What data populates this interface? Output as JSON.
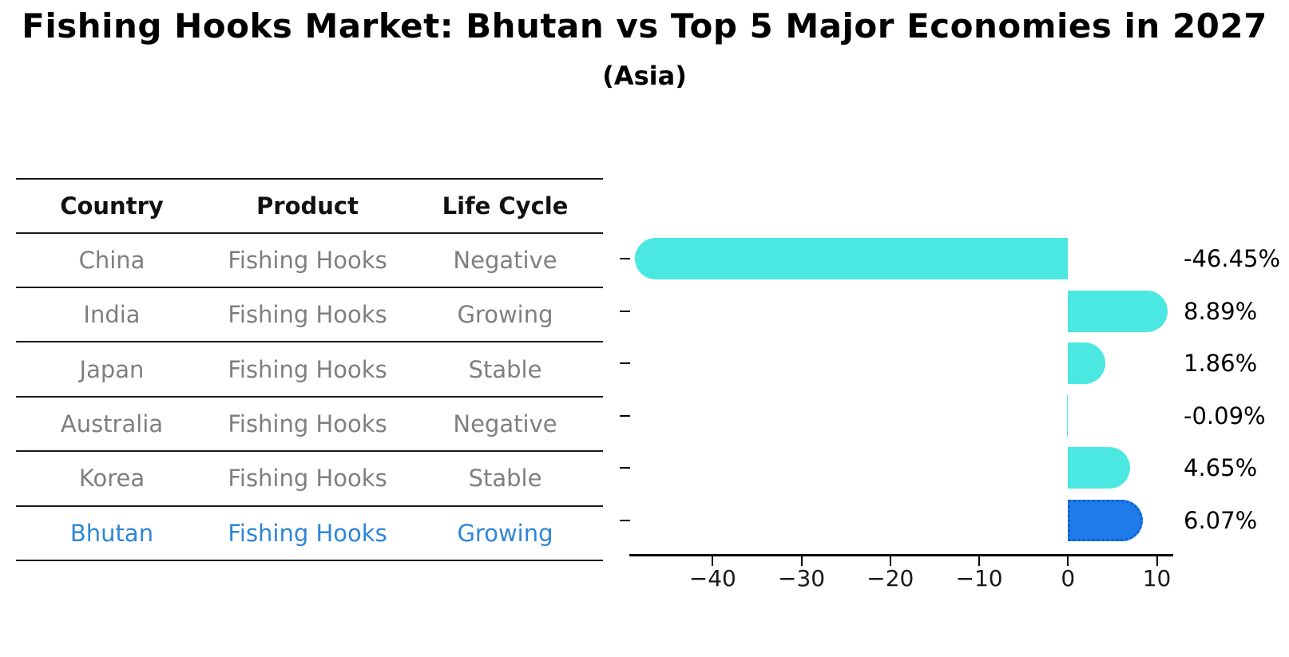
{
  "title": "Fishing Hooks Market: Bhutan vs Top 5 Major Economies in 2027",
  "subtitle": "(Asia)",
  "table": {
    "headers": [
      "Country",
      "Product",
      "Life Cycle"
    ],
    "rows": [
      {
        "country": "China",
        "product": "Fishing Hooks",
        "life_cycle": "Negative",
        "highlighted": false
      },
      {
        "country": "India",
        "product": "Fishing Hooks",
        "life_cycle": "Growing",
        "highlighted": false
      },
      {
        "country": "Japan",
        "product": "Fishing Hooks",
        "life_cycle": "Stable",
        "highlighted": false
      },
      {
        "country": "Australia",
        "product": "Fishing Hooks",
        "life_cycle": "Negative",
        "highlighted": false
      },
      {
        "country": "Korea",
        "product": "Fishing Hooks",
        "life_cycle": "Stable",
        "highlighted": false
      },
      {
        "country": "Bhutan",
        "product": "Fishing Hooks",
        "life_cycle": "Growing",
        "highlighted": true
      }
    ]
  },
  "colors": {
    "bar": "#4AE8E0",
    "highlight_bar": "#1E7BE8",
    "highlight_bar_border": "#0C5FD9",
    "table_text": "#7f7f7f",
    "highlight_text": "#2E86D6",
    "header_text": "#111111",
    "axis": "#000000"
  },
  "chart_data": {
    "type": "bar",
    "orientation": "horizontal",
    "title": "Fishing Hooks Market: Bhutan vs Top 5 Major Economies in 2027",
    "subtitle": "(Asia)",
    "categories": [
      "China",
      "India",
      "Japan",
      "Australia",
      "Korea",
      "Bhutan"
    ],
    "values": [
      -46.45,
      8.89,
      1.86,
      -0.09,
      4.65,
      6.07
    ],
    "value_labels": [
      "-46.45%",
      "8.89%",
      "1.86%",
      "-0.09%",
      "4.65%",
      "6.07%"
    ],
    "highlight_index": 5,
    "x_tick_values": [
      -40,
      -30,
      -20,
      -10,
      0,
      10
    ],
    "x_tick_labels": [
      "−40",
      "−30",
      "−20",
      "−10",
      "0",
      "10"
    ],
    "xlim": [
      -49.2,
      11.66
    ],
    "xlabel": "",
    "ylabel": "",
    "grid": false,
    "legend": null
  }
}
